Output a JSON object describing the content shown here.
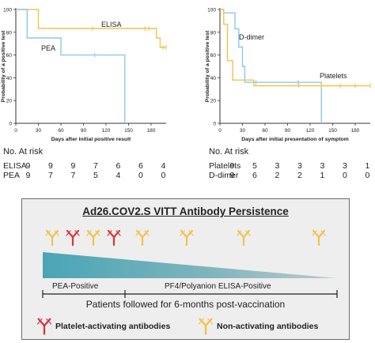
{
  "chart_data": [
    {
      "type": "line",
      "subtype": "kaplan-meier",
      "xlabel": "Days after initial positive result",
      "ylabel": "Probability of a positive test",
      "xlim": [
        0,
        200
      ],
      "ylim": [
        0,
        100
      ],
      "xticks": [
        0,
        30,
        60,
        90,
        120,
        150,
        180
      ],
      "yticks": [
        0,
        20,
        40,
        60,
        80,
        100
      ],
      "series": [
        {
          "name": "ELISA",
          "color": "#f3c24d",
          "steps": [
            [
              0,
              100
            ],
            [
              30,
              100
            ],
            [
              30,
              83.3
            ],
            [
              187,
              83.3
            ],
            [
              187,
              75
            ],
            [
              192,
              75
            ],
            [
              192,
              66.7
            ],
            [
              200,
              66.7
            ]
          ],
          "censors": [
            [
              102,
              83.3
            ],
            [
              172,
              83.3
            ],
            [
              177,
              83.3
            ],
            [
              196,
              66.7
            ],
            [
              200,
              66.7
            ]
          ]
        },
        {
          "name": "PEA",
          "color": "#8cc8ea",
          "steps": [
            [
              0,
              100
            ],
            [
              15,
              100
            ],
            [
              15,
              75
            ],
            [
              60,
              75
            ],
            [
              60,
              60
            ],
            [
              145,
              60
            ],
            [
              145,
              0
            ]
          ],
          "censors": [
            [
              105,
              60
            ]
          ]
        }
      ]
    },
    {
      "type": "line",
      "subtype": "kaplan-meier",
      "xlabel": "Days after initial presentation of symptom",
      "ylabel": "Probability of a positive test",
      "xlim": [
        0,
        200
      ],
      "ylim": [
        0,
        100
      ],
      "xticks": [
        0,
        30,
        60,
        90,
        120,
        150,
        180
      ],
      "yticks": [
        0,
        20,
        40,
        60,
        80,
        100
      ],
      "series": [
        {
          "name": "D-dimer",
          "color": "#8cc8ea",
          "steps": [
            [
              0,
              100
            ],
            [
              5,
              100
            ],
            [
              5,
              97
            ],
            [
              20,
              97
            ],
            [
              20,
              83
            ],
            [
              25,
              83
            ],
            [
              25,
              67
            ],
            [
              30,
              67
            ],
            [
              30,
              50
            ],
            [
              33,
              50
            ],
            [
              33,
              36
            ],
            [
              135,
              36
            ],
            [
              135,
              0
            ]
          ],
          "censors": [
            [
              48,
              36
            ],
            [
              104,
              36
            ]
          ]
        },
        {
          "name": "Platelets",
          "color": "#f3c24d",
          "steps": [
            [
              0,
              100
            ],
            [
              5,
              100
            ],
            [
              5,
              87
            ],
            [
              10,
              87
            ],
            [
              10,
              55
            ],
            [
              17,
              55
            ],
            [
              17,
              38
            ],
            [
              45,
              38
            ],
            [
              45,
              33
            ],
            [
              200,
              33
            ]
          ],
          "censors": [
            [
              105,
              33
            ],
            [
              135,
              33
            ],
            [
              160,
              33
            ],
            [
              180,
              33
            ],
            [
              200,
              33
            ]
          ]
        }
      ]
    }
  ],
  "risk_tables": [
    {
      "title": "No. At risk",
      "rows": [
        {
          "label": "ELISA",
          "values": [
            "9",
            "9",
            "9",
            "7",
            "6",
            "6",
            "4"
          ]
        },
        {
          "label": "PEA",
          "values": [
            "9",
            "7",
            "7",
            "5",
            "4",
            "0",
            "0"
          ]
        }
      ]
    },
    {
      "title": "No. At risk",
      "rows": [
        {
          "label": "Platelets",
          "values": [
            "9",
            "5",
            "3",
            "3",
            "3",
            "3",
            "1"
          ]
        },
        {
          "label": "D-dimer",
          "values": [
            "9",
            "6",
            "2",
            "2",
            "1",
            "0",
            "0"
          ]
        }
      ]
    }
  ],
  "panel": {
    "title": "Ad26.COV2.S VITT Antibody Persistence",
    "pea_label": "PEA-Positive",
    "elisa_label": "PF4/Polyanion ELISA-Positive",
    "followed": "Patients followed for 6-months post-vaccination",
    "legend_red": "Platelet-activating antibodies",
    "legend_yellow": "Non-activating antibodies"
  },
  "colors": {
    "red": "#d9363e",
    "yellow": "#f3c24d",
    "blue": "#8cc8ea",
    "teal_dark": "#4aa5b5"
  }
}
